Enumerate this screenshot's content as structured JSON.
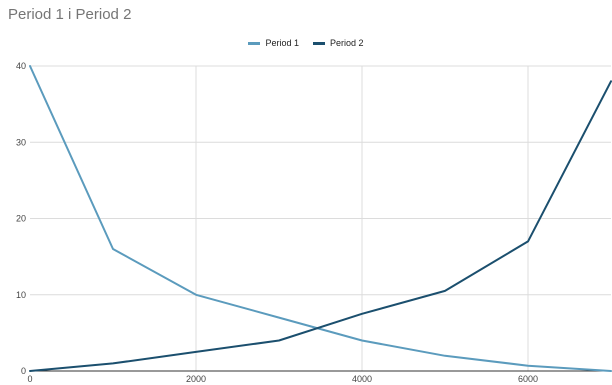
{
  "chart_data": {
    "type": "line",
    "title": "Period 1 i Period 2",
    "xlabel": "",
    "ylabel": "",
    "x": [
      0,
      1000,
      2000,
      3000,
      4000,
      5000,
      6000,
      7000
    ],
    "series": [
      {
        "name": "Period 1",
        "color": "#5b9bbd",
        "values": [
          40,
          16,
          10,
          7,
          4,
          2,
          0.7,
          0
        ]
      },
      {
        "name": "Period 2",
        "color": "#1b4f6e",
        "values": [
          0,
          1,
          2.5,
          4,
          7.5,
          10.5,
          17,
          38
        ]
      }
    ],
    "xlim": [
      0,
      7000
    ],
    "ylim": [
      0,
      40
    ],
    "xticks": [
      0,
      2000,
      4000,
      6000
    ],
    "yticks": [
      0,
      10,
      20,
      30,
      40
    ],
    "legend": "top-center",
    "grid": true
  }
}
